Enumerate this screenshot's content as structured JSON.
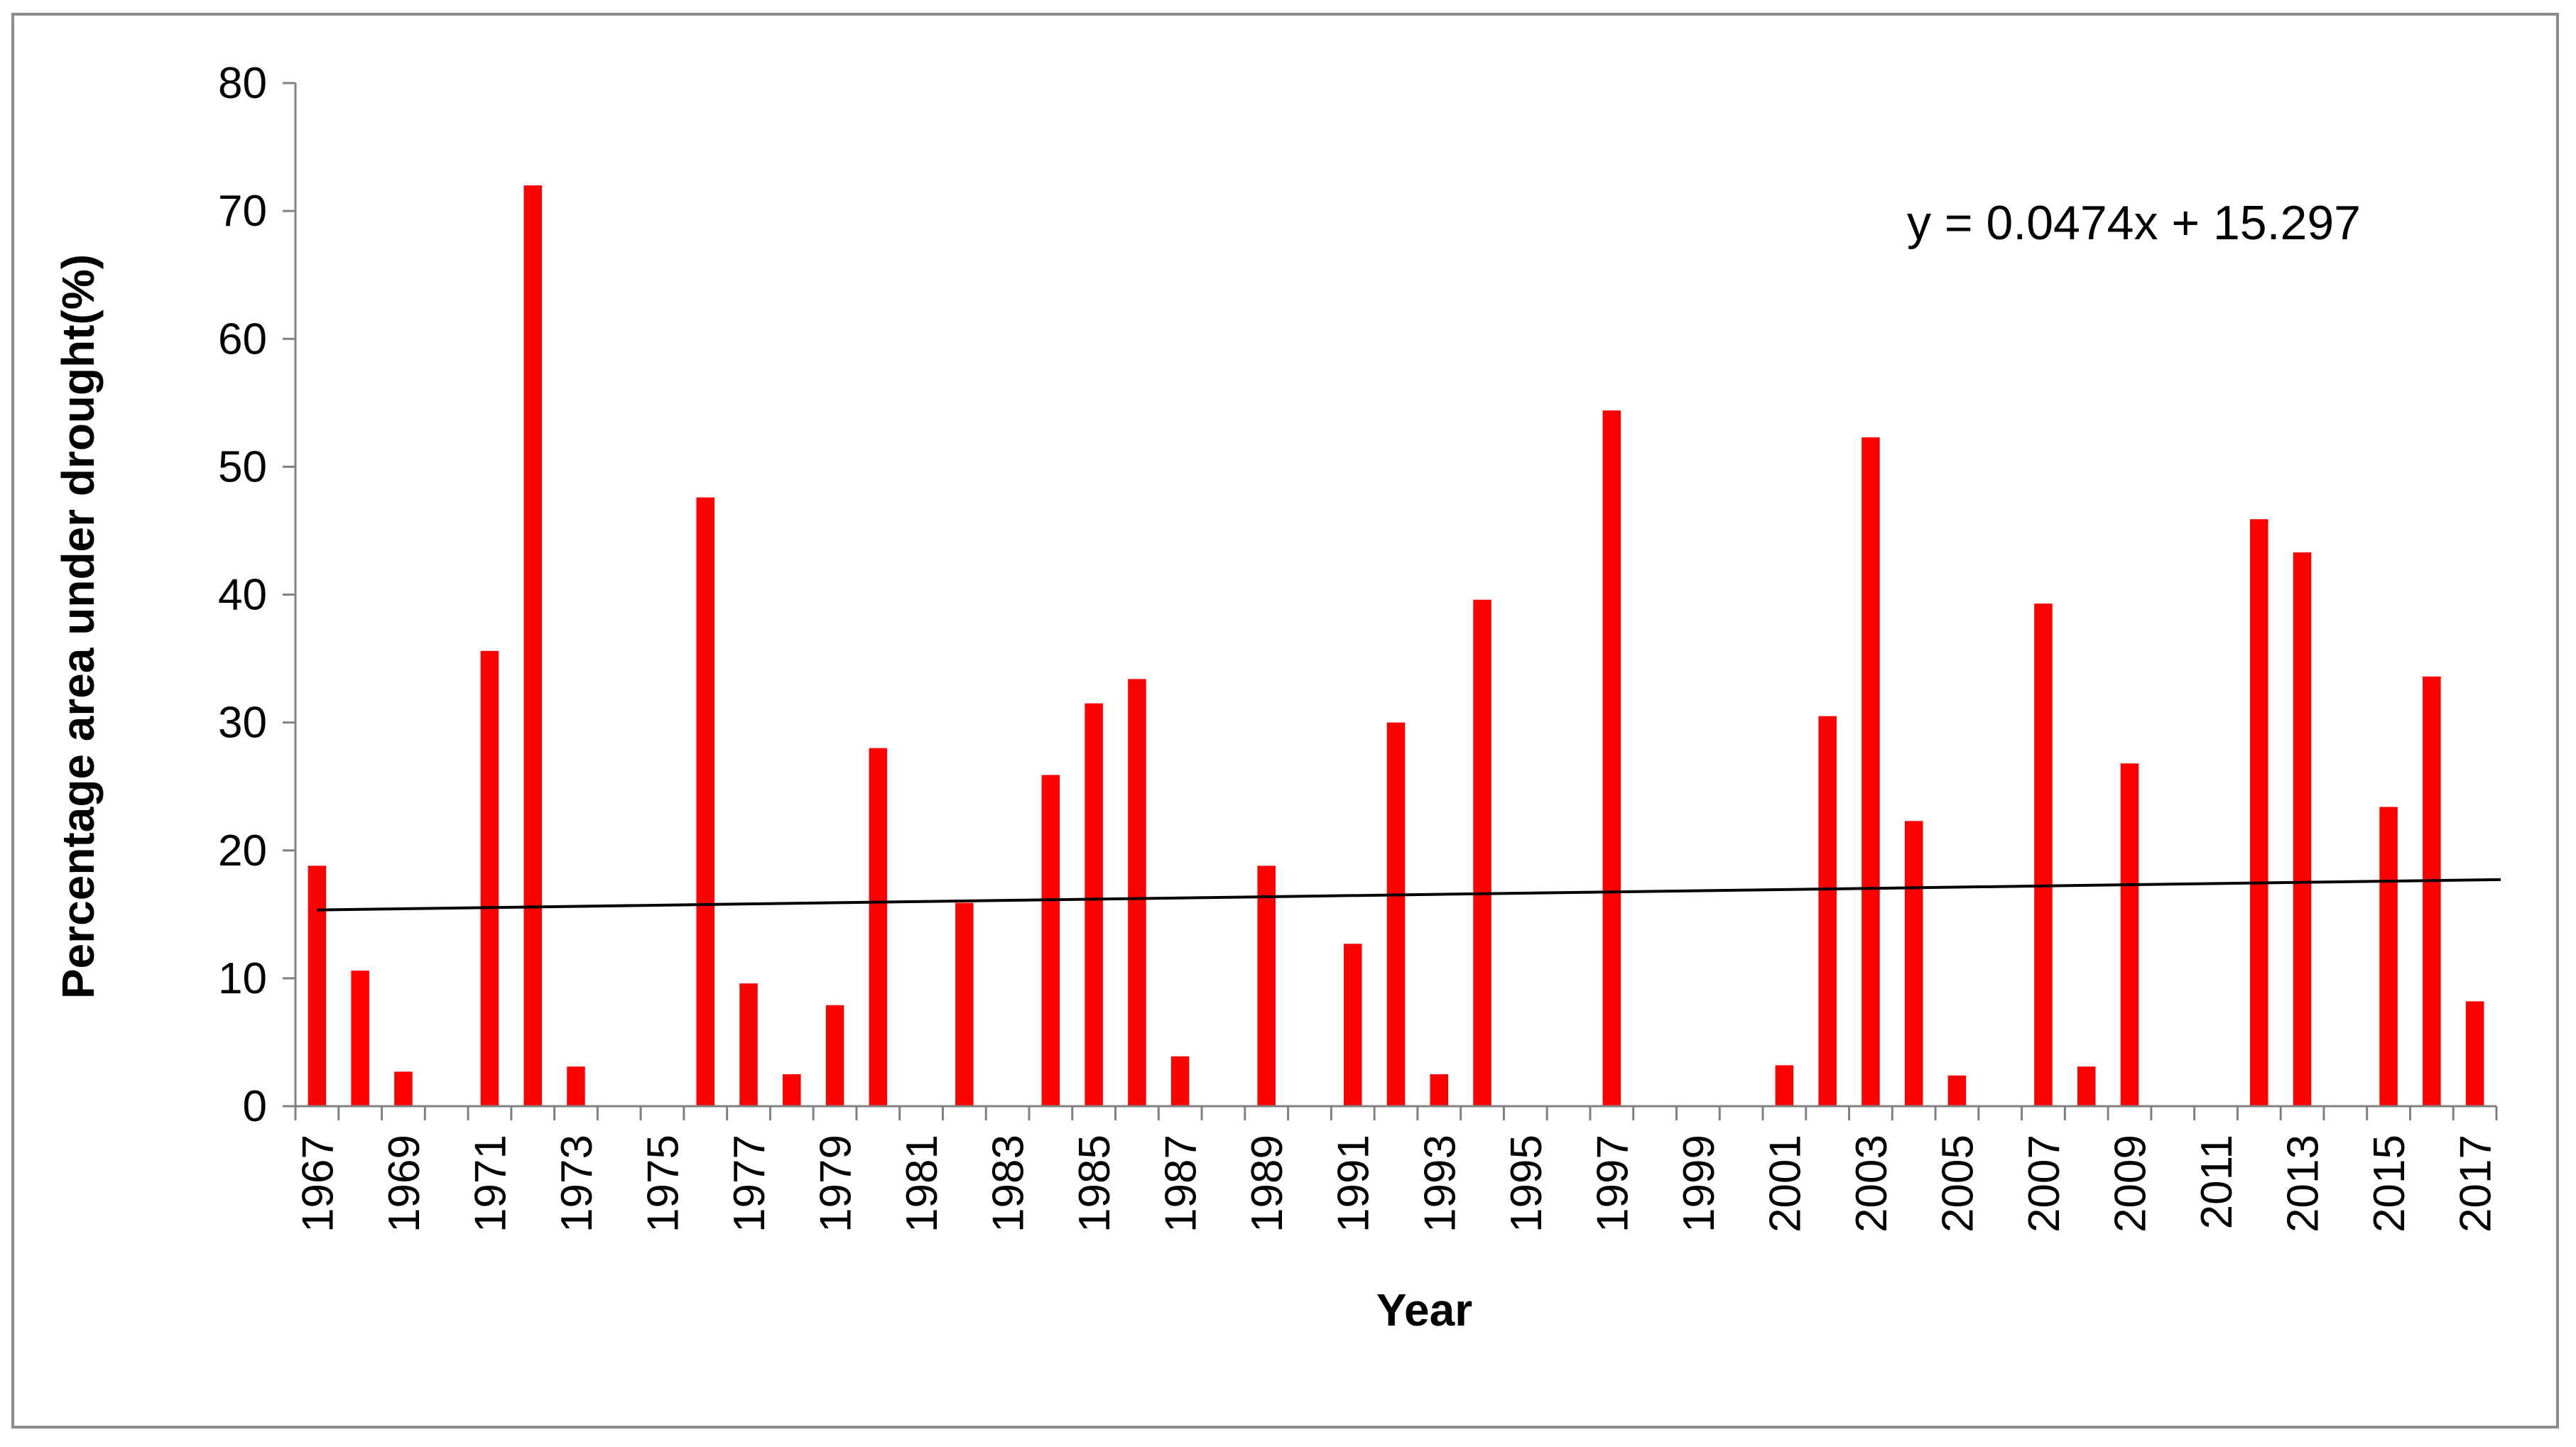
{
  "chart_data": {
    "type": "bar",
    "title": "",
    "xlabel": "Year",
    "ylabel": "Percentage area under drought(%)",
    "ylim": [
      0,
      80
    ],
    "yticks": [
      0,
      10,
      20,
      30,
      40,
      50,
      60,
      70,
      80
    ],
    "categories": [
      "1967",
      "1968",
      "1969",
      "1970",
      "1971",
      "1972",
      "1973",
      "1974",
      "1975",
      "1976",
      "1977",
      "1978",
      "1979",
      "1980",
      "1981",
      "1982",
      "1983",
      "1984",
      "1985",
      "1986",
      "1987",
      "1988",
      "1989",
      "1990",
      "1991",
      "1992",
      "1993",
      "1994",
      "1995",
      "1996",
      "1997",
      "1998",
      "1999",
      "2000",
      "2001",
      "2002",
      "2003",
      "2004",
      "2005",
      "2006",
      "2007",
      "2008",
      "2009",
      "2010",
      "2011",
      "2012",
      "2013",
      "2014",
      "2015",
      "2016",
      "2017"
    ],
    "xtick_labels": [
      "1967",
      "1969",
      "1971",
      "1973",
      "1975",
      "1977",
      "1979",
      "1981",
      "1983",
      "1985",
      "1987",
      "1989",
      "1991",
      "1993",
      "1995",
      "1997",
      "1999",
      "2001",
      "2003",
      "2005",
      "2007",
      "2009",
      "2011",
      "2013",
      "2015",
      "2017"
    ],
    "values": [
      18.8,
      10.6,
      2.7,
      0,
      35.6,
      72.0,
      3.1,
      0,
      0,
      47.6,
      9.6,
      2.5,
      7.9,
      28.0,
      0,
      15.9,
      0,
      25.9,
      31.5,
      33.4,
      3.9,
      0,
      18.8,
      0,
      12.7,
      30.0,
      2.5,
      39.6,
      0,
      0,
      54.4,
      0,
      0,
      0,
      3.2,
      30.5,
      52.3,
      22.3,
      2.4,
      0,
      39.3,
      3.1,
      26.8,
      0,
      0,
      45.9,
      43.3,
      0,
      23.4,
      33.6,
      8.2
    ],
    "bar_color": "#ff0000",
    "trendline": {
      "equation": "y = 0.0474x + 15.297",
      "slope": 0.0474,
      "intercept": 15.297,
      "color": "#000000"
    }
  }
}
